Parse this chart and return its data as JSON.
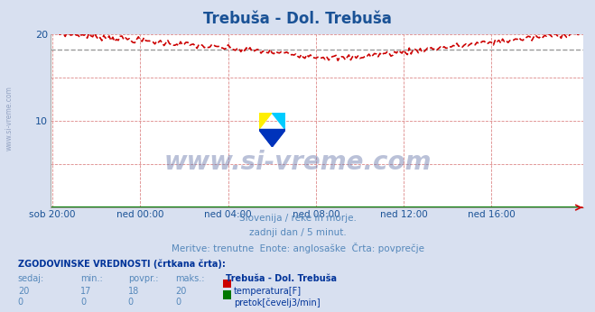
{
  "title": "Trebuša - Dol. Trebuša",
  "title_color": "#1a5296",
  "title_fontsize": 12,
  "bg_color": "#d8e0f0",
  "plot_bg_color": "#ffffff",
  "y_min": 0,
  "y_max": 20,
  "y_ticks": [
    0,
    5,
    10,
    15,
    20
  ],
  "y_tick_labels": [
    "",
    "",
    "10",
    "",
    "20"
  ],
  "x_tick_labels": [
    "sob 20:00",
    "ned 00:00",
    "ned 04:00",
    "ned 08:00",
    "ned 12:00",
    "ned 16:00"
  ],
  "x_tick_positions": [
    0,
    48,
    96,
    144,
    192,
    240
  ],
  "n_points": 289,
  "temp_color": "#cc0000",
  "flow_color": "#007700",
  "avg_line_color": "#999999",
  "grid_color": "#dd8888",
  "subtitle1": "Slovenija / reke in morje.",
  "subtitle2": "zadnji dan / 5 minut.",
  "subtitle3": "Meritve: trenutne  Enote: anglosaške  Črta: povprečje",
  "subtitle_color": "#5588bb",
  "legend_header": "ZGODOVINSKE VREDNOSTI (črtkana črta):",
  "legend_header_color": "#003399",
  "col_headers": [
    "sedaj:",
    "min.:",
    "povpr.:",
    "maks.:"
  ],
  "col_header_color": "#5588bb",
  "legend_title": "Trebuša - Dol. Trebuša",
  "legend_title_color": "#003399",
  "legend_rows": [
    {
      "label": "temperatura[F]",
      "color": "#cc0000",
      "sedaj": 20,
      "min": 17,
      "povpr": 18,
      "maks": 20
    },
    {
      "label": "pretok[čevelj3/min]",
      "color": "#007700",
      "sedaj": 0,
      "min": 0,
      "povpr": 0,
      "maks": 0
    }
  ],
  "value_color": "#5588bb",
  "left_label": "www.si-vreme.com",
  "left_label_color": "#8899bb",
  "avg_temp": 18.2,
  "watermark_text": "www.si-vreme.com",
  "watermark_color": "#6677aa",
  "logo_colors": {
    "yellow": "#ffee00",
    "cyan": "#00ccff",
    "blue": "#0033bb"
  }
}
